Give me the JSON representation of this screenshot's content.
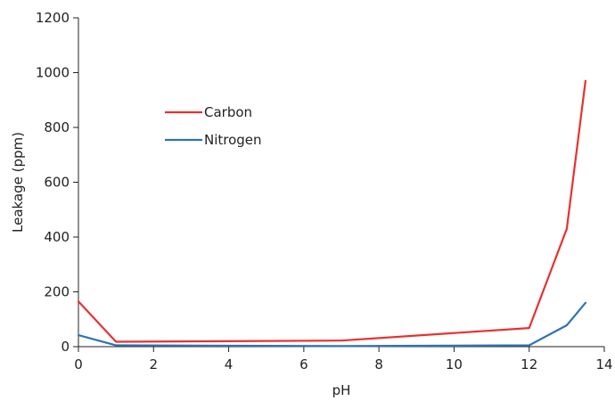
{
  "chart_data": {
    "type": "line",
    "title": "",
    "xlabel": "pH",
    "ylabel": "Leakage (ppm)",
    "xlim": [
      0,
      14
    ],
    "ylim": [
      0,
      1200
    ],
    "x_ticks": [
      0,
      2,
      4,
      6,
      8,
      10,
      12,
      14
    ],
    "y_ticks": [
      0,
      200,
      400,
      600,
      800,
      1000,
      1200
    ],
    "grid": false,
    "legend_position": "upper-left-inside",
    "series": [
      {
        "name": "Carbon",
        "color": "#e8312f",
        "points": [
          {
            "x": 0,
            "y": 165
          },
          {
            "x": 1,
            "y": 18
          },
          {
            "x": 7,
            "y": 22
          },
          {
            "x": 12,
            "y": 68
          },
          {
            "x": 13,
            "y": 430
          },
          {
            "x": 13.5,
            "y": 970
          }
        ]
      },
      {
        "name": "Nitrogen",
        "color": "#2f73b5",
        "points": [
          {
            "x": 0,
            "y": 42
          },
          {
            "x": 1,
            "y": 5
          },
          {
            "x": 7,
            "y": 2
          },
          {
            "x": 12,
            "y": 5
          },
          {
            "x": 13,
            "y": 78
          },
          {
            "x": 13.5,
            "y": 160
          }
        ]
      }
    ]
  }
}
